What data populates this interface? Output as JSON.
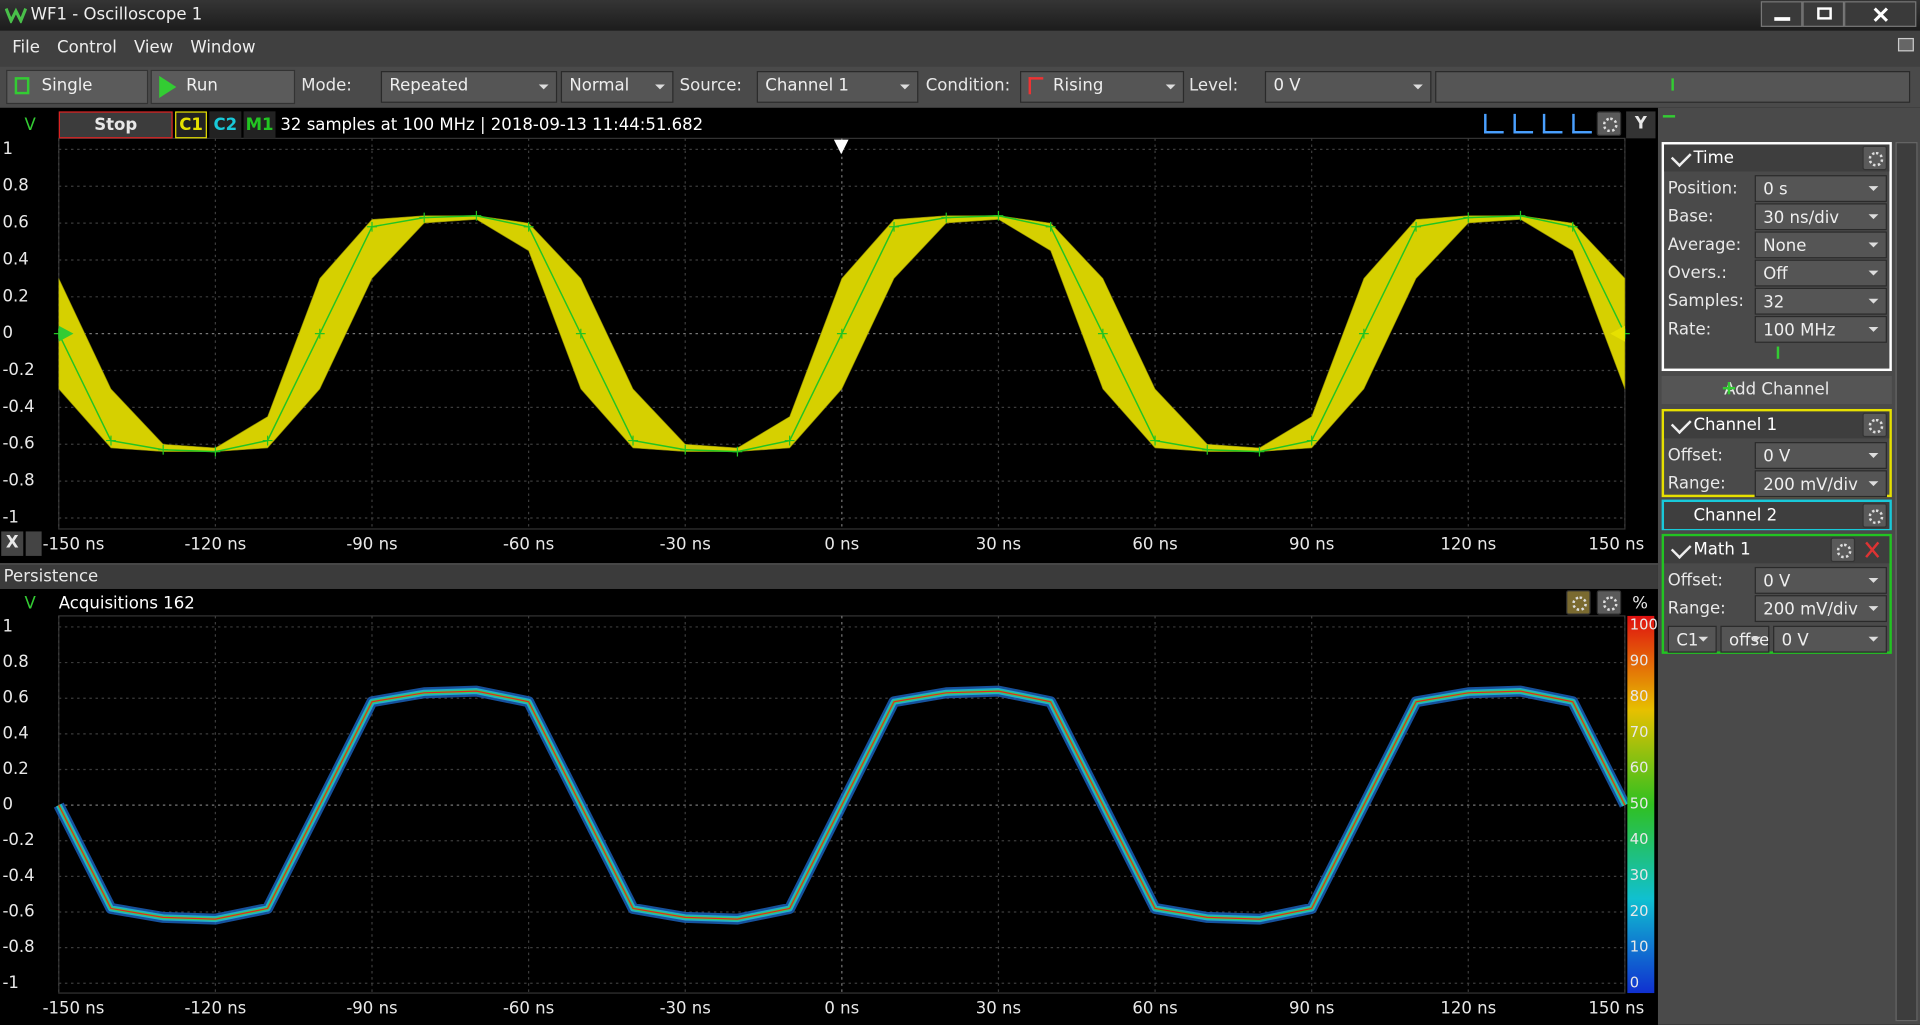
{
  "window": {
    "title": "WF1 - Oscilloscope 1"
  },
  "menu": [
    "File",
    "Control",
    "View",
    "Window"
  ],
  "toolbar": {
    "single": "Single",
    "run": "Run",
    "mode_label": "Mode:",
    "mode": "Repeated",
    "mode2": "Normal",
    "source_label": "Source:",
    "source": "Channel 1",
    "condition_label": "Condition:",
    "condition": "Rising",
    "level_label": "Level:",
    "level": "0 V"
  },
  "scope": {
    "unit": "V",
    "stop": "Stop",
    "channels": [
      "C1",
      "C2",
      "M1"
    ],
    "info": "32 samples at 100 MHz | 2018-09-13 11:44:51.682",
    "y_button": "Y",
    "x_button": "X",
    "xlim": [
      -150,
      150
    ],
    "ylim": [
      -1,
      1
    ],
    "xticks": [
      {
        "value": -150,
        "label": "-150 ns"
      },
      {
        "value": -120,
        "label": "-120 ns"
      },
      {
        "value": -90,
        "label": "-90 ns"
      },
      {
        "value": -60,
        "label": "-60 ns"
      },
      {
        "value": -30,
        "label": "-30 ns"
      },
      {
        "value": 0,
        "label": "0 ns"
      },
      {
        "value": 30,
        "label": "30 ns"
      },
      {
        "value": 60,
        "label": "60 ns"
      },
      {
        "value": 90,
        "label": "90 ns"
      },
      {
        "value": 120,
        "label": "120 ns"
      },
      {
        "value": 150,
        "label": "150 ns"
      }
    ],
    "yticks": [
      1,
      0.8,
      0.6,
      0.4,
      0.2,
      0,
      -0.2,
      -0.4,
      -0.6,
      -0.8,
      -1
    ],
    "grid": true,
    "x": [
      -150,
      -140,
      -130,
      -120,
      -110,
      -100,
      -90,
      -80,
      -70,
      -60,
      -50,
      -40,
      -30,
      -20,
      -10,
      0,
      10,
      20,
      30,
      40,
      50,
      60,
      70,
      80,
      90,
      100,
      110,
      120,
      130,
      140,
      150
    ],
    "math1": [
      0,
      -0.58,
      -0.63,
      -0.64,
      -0.58,
      0,
      0.58,
      0.63,
      0.64,
      0.58,
      0,
      -0.58,
      -0.63,
      -0.64,
      -0.58,
      0,
      0.58,
      0.63,
      0.64,
      0.58,
      0,
      -0.58,
      -0.63,
      -0.64,
      -0.58,
      0,
      0.58,
      0.63,
      0.64,
      0.58,
      0
    ],
    "c1_high": [
      0.3,
      -0.3,
      -0.6,
      -0.62,
      -0.45,
      0.3,
      0.62,
      0.64,
      0.64,
      0.6,
      0.3,
      -0.3,
      -0.6,
      -0.62,
      -0.45,
      0.3,
      0.62,
      0.64,
      0.64,
      0.6,
      0.3,
      -0.3,
      -0.6,
      -0.62,
      -0.45,
      0.3,
      0.62,
      0.64,
      0.64,
      0.6,
      0.3
    ],
    "c1_low": [
      -0.3,
      -0.62,
      -0.64,
      -0.64,
      -0.62,
      -0.3,
      0.3,
      0.6,
      0.62,
      0.45,
      -0.3,
      -0.62,
      -0.64,
      -0.64,
      -0.62,
      -0.3,
      0.3,
      0.6,
      0.62,
      0.45,
      -0.3,
      -0.62,
      -0.64,
      -0.64,
      -0.62,
      -0.3,
      0.3,
      0.6,
      0.62,
      0.45,
      -0.3
    ],
    "colors": {
      "c1": "#d6d000",
      "math1": "#22c422"
    }
  },
  "persistence": {
    "title": "Persistence",
    "unit": "V",
    "acquisitions": "Acquisitions 162",
    "scale_unit": "%",
    "xlim": [
      -150,
      150
    ],
    "ylim": [
      -1,
      1
    ],
    "xticks": [
      {
        "value": -150,
        "label": "-150 ns"
      },
      {
        "value": -120,
        "label": "-120 ns"
      },
      {
        "value": -90,
        "label": "-90 ns"
      },
      {
        "value": -60,
        "label": "-60 ns"
      },
      {
        "value": -30,
        "label": "-30 ns"
      },
      {
        "value": 0,
        "label": "0 ns"
      },
      {
        "value": 30,
        "label": "30 ns"
      },
      {
        "value": 60,
        "label": "60 ns"
      },
      {
        "value": 90,
        "label": "90 ns"
      },
      {
        "value": 120,
        "label": "120 ns"
      },
      {
        "value": 150,
        "label": "150 ns"
      }
    ],
    "yticks": [
      1,
      0.8,
      0.6,
      0.4,
      0.2,
      0,
      -0.2,
      -0.4,
      -0.6,
      -0.8,
      -1
    ],
    "grid": true,
    "scale_lim": [
      0,
      100
    ],
    "scale_ticks": [
      100,
      90,
      80,
      70,
      60,
      50,
      40,
      30,
      20,
      10,
      0
    ]
  },
  "panel": {
    "time": {
      "title": "Time",
      "rows": [
        [
          "Position:",
          "0 s"
        ],
        [
          "Base:",
          "30 ns/div"
        ],
        [
          "Average:",
          "None"
        ],
        [
          "Overs.:",
          "Off"
        ],
        [
          "Samples:",
          "32"
        ],
        [
          "Rate:",
          "100 MHz"
        ]
      ]
    },
    "add_channel": "Add Channel",
    "channel1": {
      "title": "Channel 1",
      "rows": [
        [
          "Offset:",
          "0 V"
        ],
        [
          "Range:",
          "200 mV/div"
        ]
      ]
    },
    "channel2": {
      "title": "Channel 2"
    },
    "math1": {
      "title": "Math 1",
      "rows": [
        [
          "Offset:",
          "0 V"
        ],
        [
          "Range:",
          "200 mV/div"
        ]
      ],
      "source": "C1",
      "operation": "offse",
      "value": "0 V"
    }
  }
}
